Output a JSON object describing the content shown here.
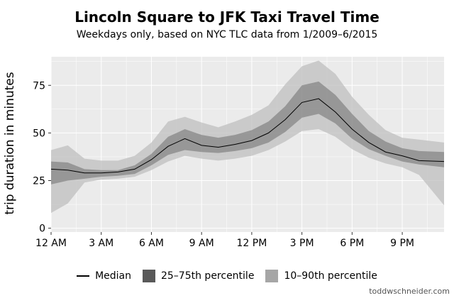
{
  "chart_data": {
    "type": "area",
    "title": "Lincoln Square to JFK Taxi Travel Time",
    "subtitle": "Weekdays only, based on NYC TLC data from 1/2009–6/2015",
    "xlabel": "",
    "ylabel": "trip duration in minutes",
    "xlim": [
      0,
      23.5
    ],
    "ylim": [
      -2,
      90
    ],
    "x_ticks": [
      {
        "value": 0,
        "label": "12 AM"
      },
      {
        "value": 3,
        "label": "3 AM"
      },
      {
        "value": 6,
        "label": "6 AM"
      },
      {
        "value": 9,
        "label": "9 AM"
      },
      {
        "value": 12,
        "label": "12 PM"
      },
      {
        "value": 15,
        "label": "3 PM"
      },
      {
        "value": 18,
        "label": "6 PM"
      },
      {
        "value": 21,
        "label": "9 PM"
      }
    ],
    "y_ticks": [
      0,
      25,
      50,
      75
    ],
    "grid": true,
    "legend": "bottom",
    "x": [
      0,
      1,
      2,
      3,
      4,
      5,
      6,
      7,
      8,
      9,
      10,
      11,
      12,
      13,
      14,
      15,
      16,
      17,
      18,
      19,
      20,
      21,
      22,
      23.5
    ],
    "series": [
      {
        "name": "Median",
        "kind": "line",
        "color": "#000000",
        "values": [
          31,
          30.5,
          29,
          29,
          29.5,
          31,
          36,
          43,
          47,
          43.5,
          42.5,
          44,
          46,
          50,
          57,
          66,
          68,
          61,
          52,
          45,
          40,
          38,
          35.5,
          35
        ]
      },
      {
        "name": "25–75th percentile",
        "kind": "band",
        "color": "#595959",
        "lower": [
          23,
          25,
          26,
          27,
          27.5,
          28.5,
          33,
          38.5,
          41,
          40,
          39.5,
          40.5,
          42,
          45,
          50.5,
          58,
          60,
          55,
          47,
          41.5,
          38,
          35,
          33.5,
          32
        ],
        "upper": [
          35,
          34.5,
          31,
          30.5,
          30.5,
          33,
          39,
          48,
          52,
          49,
          47.5,
          49,
          51.5,
          56,
          64,
          75,
          77,
          70,
          60,
          51,
          45.5,
          42,
          40.5,
          40
        ]
      },
      {
        "name": "10–90th percentile",
        "kind": "band",
        "color": "#bfbfbf",
        "lower": [
          8,
          13,
          24,
          25.5,
          26,
          27,
          30.5,
          35,
          38,
          36.5,
          35.5,
          36.5,
          38,
          41,
          45.5,
          51,
          52,
          48,
          41.5,
          37,
          34,
          32,
          28,
          12
        ],
        "upper": [
          41,
          43.5,
          36.5,
          35.5,
          35.5,
          38,
          45,
          56,
          58.5,
          55.5,
          53,
          56,
          59.5,
          64.5,
          75.5,
          85,
          88,
          81,
          69,
          59.5,
          51.5,
          47.5,
          46.5,
          45
        ]
      }
    ],
    "colors": {
      "panel": "#ebebeb",
      "grid": "#ffffff"
    }
  },
  "credit": "toddwschneider.com"
}
